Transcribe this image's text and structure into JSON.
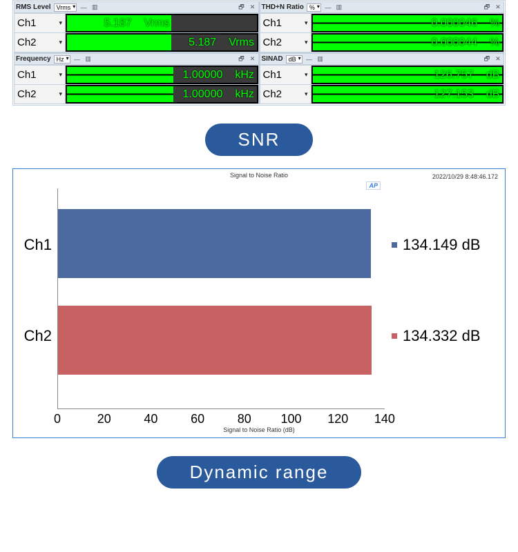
{
  "panels": [
    {
      "key": "rms",
      "title": "RMS Level",
      "unit_sel": "Vrms",
      "ch1": {
        "label": "Ch1",
        "value": "5.187",
        "unit": "Vrms",
        "fill_pct": 55,
        "split": false,
        "readout_right_pct": 46
      },
      "ch2": {
        "label": "Ch2",
        "value": "5.187",
        "unit": "Vrms",
        "fill_pct": 55,
        "split": false,
        "readout_right_pct": 2
      }
    },
    {
      "key": "thdn",
      "title": "THD+N Ratio",
      "unit_sel": "%",
      "ch1": {
        "label": "Ch1",
        "value": "0.000046",
        "unit": "%",
        "fill_pct": 100,
        "split": true,
        "readout_right_pct": 2
      },
      "ch2": {
        "label": "Ch2",
        "value": "0.000044",
        "unit": "%",
        "fill_pct": 100,
        "split": true,
        "readout_right_pct": 2
      }
    },
    {
      "key": "freq",
      "title": "Frequency",
      "unit_sel": "Hz",
      "ch1": {
        "label": "Ch1",
        "value": "1.00000",
        "unit": "kHz",
        "fill_pct": 56,
        "split": true,
        "readout_right_pct": 2
      },
      "ch2": {
        "label": "Ch2",
        "value": "1.00000",
        "unit": "kHz",
        "fill_pct": 56,
        "split": true,
        "readout_right_pct": 2
      }
    },
    {
      "key": "sinad",
      "title": "SINAD",
      "unit_sel": "dB",
      "ch1": {
        "label": "Ch1",
        "value": "126.757",
        "unit": "dB",
        "fill_pct": 100,
        "split": true,
        "readout_right_pct": 2
      },
      "ch2": {
        "label": "Ch2",
        "value": "127.153",
        "unit": "dB",
        "fill_pct": 100,
        "split": true,
        "readout_right_pct": 2
      }
    }
  ],
  "meter_colors": {
    "fill": "#00ff00",
    "track": "#3a3a3a",
    "bg": "#000000",
    "text": "#00ff00"
  },
  "section1": {
    "label": "SNR"
  },
  "snr_chart": {
    "type": "bar-horizontal",
    "title": "Signal to Noise Ratio",
    "timestamp": "2022/10/29 8:48:46.172",
    "badge": "AP",
    "xaxis_label": "Signal to Noise Ratio (dB)",
    "xlim": [
      0,
      140
    ],
    "xtick_step": 20,
    "xticks": [
      "0",
      "20",
      "40",
      "60",
      "80",
      "100",
      "120",
      "140"
    ],
    "grid_color": "#dddddd",
    "border_color": "#3b7fd1",
    "background_color": "#ffffff",
    "bars": [
      {
        "name": "Ch1",
        "value": 134.149,
        "value_label": "134.149 dB",
        "color": "#4d6aa0"
      },
      {
        "name": "Ch2",
        "value": 134.332,
        "value_label": "134.332 dB",
        "color": "#c86262"
      }
    ],
    "label_fontsize": 22,
    "tick_fontsize": 18
  },
  "section2": {
    "label": "Dynamic range"
  },
  "header_icons": {
    "link": "🔗",
    "menu": "▾",
    "restore": "🗗",
    "close": "✕",
    "dash": "—"
  }
}
